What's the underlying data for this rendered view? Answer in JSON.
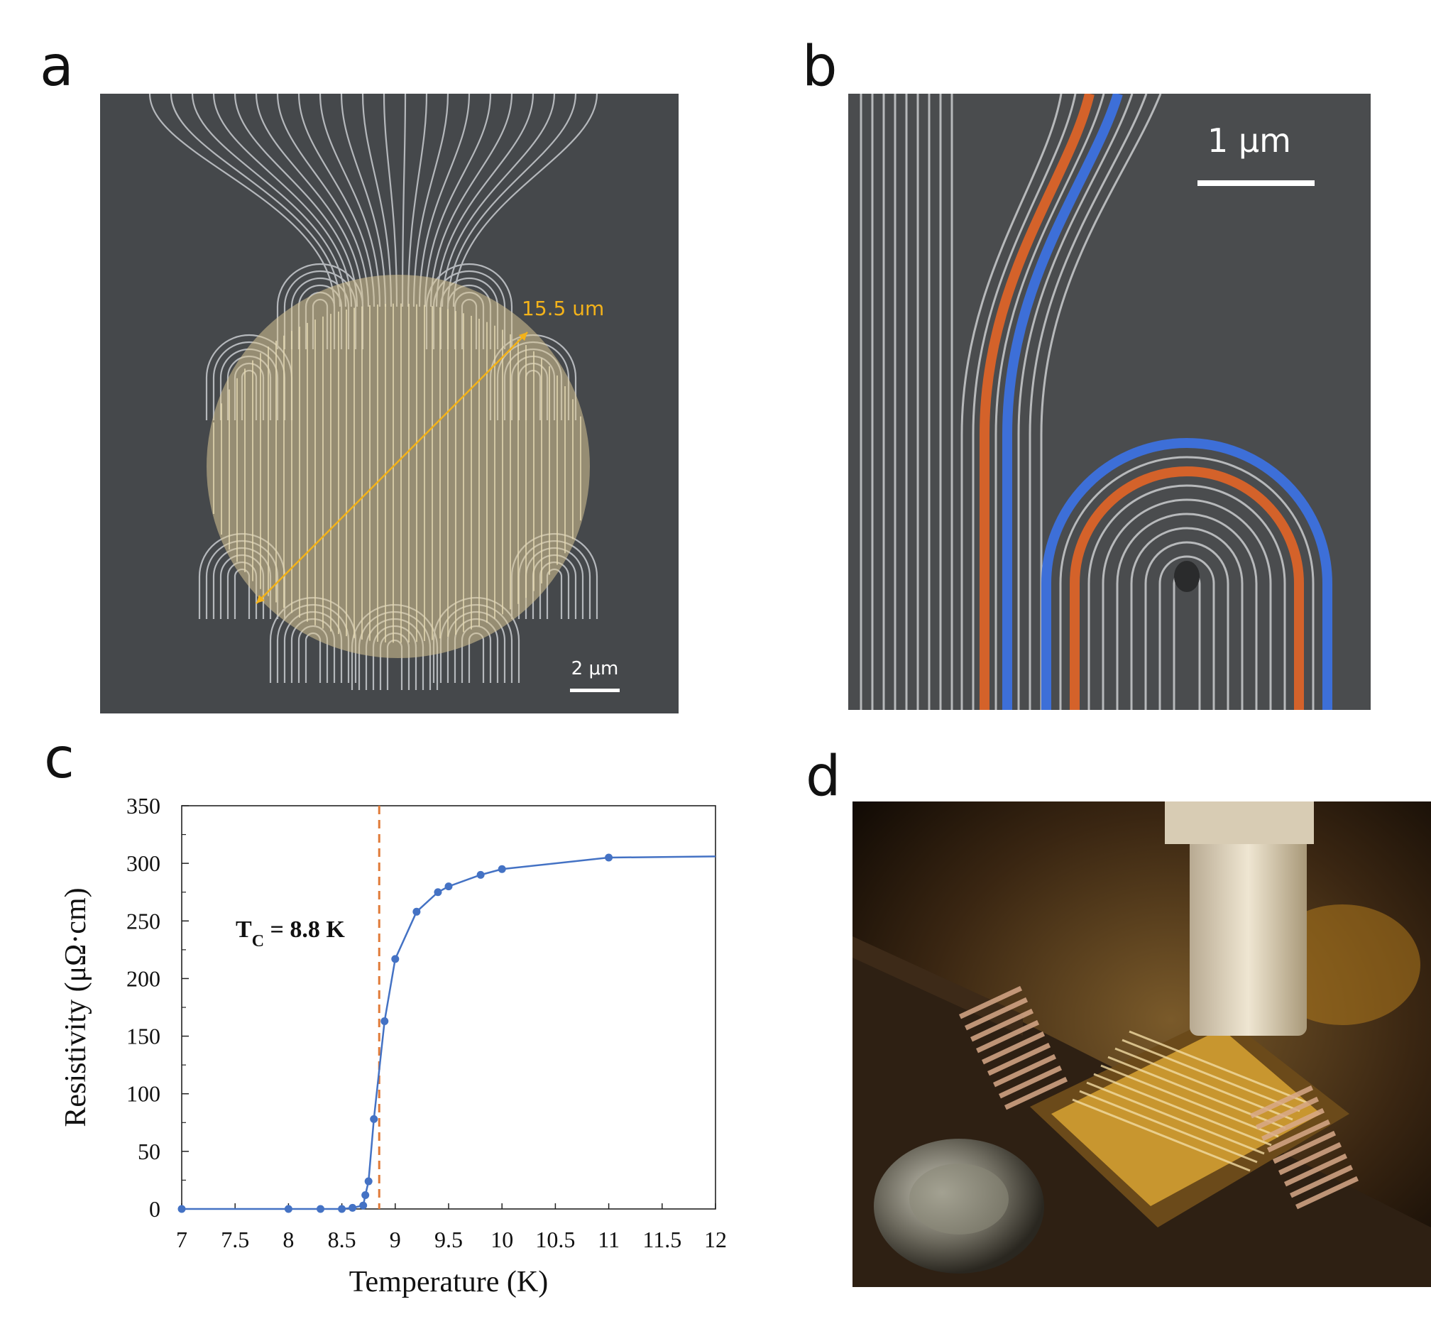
{
  "panels": {
    "a": {
      "letter": "a",
      "diameter_label": "15.5 um",
      "scale_label": "2 μm",
      "colors": {
        "background": "#45484b",
        "wire": "#c9ccd0",
        "overlay": "#d9c796",
        "arrow": "#f3b21a"
      }
    },
    "b": {
      "letter": "b",
      "scale_label": "1 μm",
      "colors": {
        "background": "#4a4c4e",
        "wire": "#b7b9bb",
        "orange": "#d4622a",
        "blue": "#3d6fd8"
      }
    },
    "c": {
      "letter": "c"
    },
    "d": {
      "letter": "d",
      "colors": {
        "background": "#1a120a",
        "gold": "#c8962f",
        "board": "#2a1d12"
      }
    }
  },
  "chart_data": {
    "type": "line",
    "title": "",
    "xlabel": "Temperature (K)",
    "ylabel": "Resistivity (μΩ·cm)",
    "xlim": [
      7,
      12
    ],
    "ylim": [
      0,
      350
    ],
    "x_ticks": [
      "7",
      "7.5",
      "8",
      "8.5",
      "9",
      "9.5",
      "10",
      "10.5",
      "11",
      "11.5",
      "12"
    ],
    "y_ticks": [
      "0",
      "50",
      "100",
      "150",
      "200",
      "250",
      "300",
      "350"
    ],
    "series": [
      {
        "color": "#4472c4",
        "points": [
          [
            7,
            0
          ],
          [
            8,
            0
          ],
          [
            8.3,
            0
          ],
          [
            8.5,
            0
          ],
          [
            8.6,
            1
          ],
          [
            8.7,
            3
          ],
          [
            8.72,
            12
          ],
          [
            8.75,
            24
          ],
          [
            8.8,
            78
          ],
          [
            8.9,
            163
          ],
          [
            9.0,
            217
          ],
          [
            9.2,
            258
          ],
          [
            9.4,
            275
          ],
          [
            9.5,
            280
          ],
          [
            9.8,
            290
          ],
          [
            10,
            295
          ],
          [
            11,
            305
          ],
          [
            12,
            306
          ]
        ]
      }
    ],
    "annotation": {
      "text_main": "T",
      "text_sub": "C",
      "text_rest": " = 8.8 K",
      "line_x": 8.85,
      "line_color": "#e07b39"
    }
  }
}
